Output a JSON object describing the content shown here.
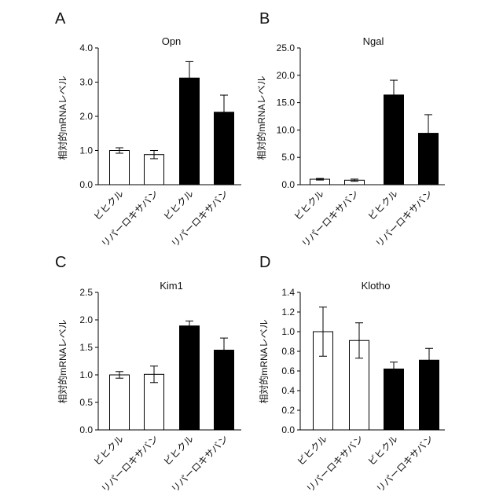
{
  "figure": {
    "panels": [
      "A",
      "B",
      "C",
      "D"
    ]
  },
  "chart_data": [
    {
      "panel": "A",
      "type": "bar",
      "title": "Opn",
      "ylabel": "相対的mRNAレベル",
      "categories": [
        "ビヒクル",
        "リパーロキサバン",
        "ビヒクル",
        "リパーロキサバン"
      ],
      "values": [
        1.0,
        0.88,
        3.12,
        2.12
      ],
      "errors": [
        0.08,
        0.12,
        0.48,
        0.5
      ],
      "bar_colors": [
        "#ffffff",
        "#ffffff",
        "#000000",
        "#000000"
      ],
      "ylim": [
        0,
        4
      ],
      "yticks": [
        "0.0",
        "1.0",
        "2.0",
        "3.0",
        "4.0"
      ]
    },
    {
      "panel": "B",
      "type": "bar",
      "title": "Ngal",
      "ylabel": "相対的mRNAレベル",
      "categories": [
        "ビヒクル",
        "リパーロキサバン",
        "ビヒクル",
        "リパーロキサバン"
      ],
      "values": [
        1.0,
        0.82,
        16.4,
        9.4
      ],
      "errors": [
        0.15,
        0.2,
        2.7,
        3.4
      ],
      "bar_colors": [
        "#ffffff",
        "#ffffff",
        "#000000",
        "#000000"
      ],
      "ylim": [
        0,
        25
      ],
      "yticks": [
        "0.0",
        "5.0",
        "10.0",
        "15.0",
        "20.0",
        "25.0"
      ]
    },
    {
      "panel": "C",
      "type": "bar",
      "title": "Kim1",
      "ylabel": "相対的mRNAレベル",
      "categories": [
        "ビヒクル",
        "リパーロキサバン",
        "ビヒクル",
        "リパーロキサバン"
      ],
      "values": [
        1.0,
        1.01,
        1.89,
        1.45
      ],
      "errors": [
        0.06,
        0.15,
        0.09,
        0.22
      ],
      "bar_colors": [
        "#ffffff",
        "#ffffff",
        "#000000",
        "#000000"
      ],
      "ylim": [
        0,
        2.5
      ],
      "yticks": [
        "0.0",
        "0.5",
        "1.0",
        "1.5",
        "2.0",
        "2.5"
      ]
    },
    {
      "panel": "D",
      "type": "bar",
      "title": "Klotho",
      "ylabel": "相対的mRNAレベル",
      "categories": [
        "ビヒクル",
        "リパーロキサバン",
        "ビヒクル",
        "リパーロキサバン"
      ],
      "values": [
        1.0,
        0.91,
        0.62,
        0.71
      ],
      "errors": [
        0.25,
        0.18,
        0.07,
        0.12
      ],
      "bar_colors": [
        "#ffffff",
        "#ffffff",
        "#000000",
        "#000000"
      ],
      "ylim": [
        0,
        1.4
      ],
      "yticks": [
        "0.0",
        "0.2",
        "0.4",
        "0.6",
        "0.8",
        "1.0",
        "1.2",
        "1.4"
      ]
    }
  ]
}
